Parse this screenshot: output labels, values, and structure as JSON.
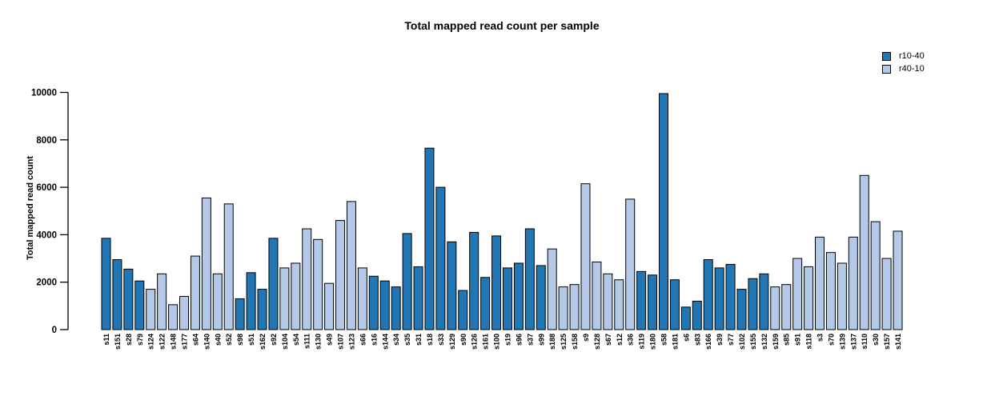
{
  "chart_data": {
    "type": "bar",
    "title": "Total mapped read count per sample",
    "xlabel": "",
    "ylabel": "Total mapped read count",
    "ylim": [
      0,
      10000
    ],
    "yticks": [
      0,
      2000,
      4000,
      6000,
      8000,
      10000
    ],
    "grid": false,
    "legend_position": "top-right",
    "axis_color": "#000000",
    "bar_border_color": "#000000",
    "series": [
      {
        "name": "r10-40",
        "color": "#2176b4"
      },
      {
        "name": "r40-10",
        "color": "#b4c9e8"
      }
    ],
    "categories": [
      "s11",
      "s151",
      "s28",
      "s79",
      "s124",
      "s122",
      "s148",
      "s177",
      "s64",
      "s140",
      "s40",
      "s52",
      "s98",
      "s51",
      "s162",
      "s92",
      "s104",
      "s54",
      "s111",
      "s130",
      "s49",
      "s107",
      "s123",
      "s66",
      "s16",
      "s144",
      "s34",
      "s35",
      "s31",
      "s18",
      "s33",
      "s129",
      "s90",
      "s126",
      "s161",
      "s100",
      "s19",
      "s96",
      "s37",
      "s99",
      "s188",
      "s125",
      "s158",
      "s9",
      "s128",
      "s67",
      "s12",
      "s36",
      "s119",
      "s180",
      "s58",
      "s181",
      "s6",
      "s83",
      "s166",
      "s39",
      "s77",
      "s102",
      "s155",
      "s132",
      "s159",
      "s85",
      "s91",
      "s118",
      "s3",
      "s70",
      "s139",
      "s137",
      "s110",
      "s30",
      "s157",
      "s141"
    ],
    "values": [
      3850,
      2950,
      2550,
      2050,
      1700,
      2350,
      1050,
      1400,
      3100,
      5550,
      2350,
      5300,
      1300,
      2400,
      1700,
      3850,
      2600,
      2800,
      4250,
      3800,
      1950,
      4600,
      5400,
      2600,
      2250,
      2050,
      1800,
      4050,
      2650,
      7650,
      6000,
      3700,
      1650,
      4100,
      2200,
      3950,
      2600,
      2800,
      4250,
      2700,
      3400,
      1800,
      1900,
      6150,
      2850,
      2350,
      2100,
      5500,
      2450,
      2300,
      9950,
      2100,
      950,
      1200,
      2950,
      2600,
      2750,
      1700,
      2150,
      2350,
      1800,
      1900,
      3000,
      2650,
      3900,
      3250,
      2800,
      3900,
      6500,
      4550,
      3000,
      4150
    ],
    "groups": [
      "r10-40",
      "r10-40",
      "r10-40",
      "r10-40",
      "r40-10",
      "r40-10",
      "r40-10",
      "r40-10",
      "r40-10",
      "r40-10",
      "r40-10",
      "r40-10",
      "r10-40",
      "r10-40",
      "r10-40",
      "r10-40",
      "r40-10",
      "r40-10",
      "r40-10",
      "r40-10",
      "r40-10",
      "r40-10",
      "r40-10",
      "r40-10",
      "r10-40",
      "r10-40",
      "r10-40",
      "r10-40",
      "r10-40",
      "r10-40",
      "r10-40",
      "r10-40",
      "r10-40",
      "r10-40",
      "r10-40",
      "r10-40",
      "r10-40",
      "r10-40",
      "r10-40",
      "r10-40",
      "r40-10",
      "r40-10",
      "r40-10",
      "r40-10",
      "r40-10",
      "r40-10",
      "r40-10",
      "r40-10",
      "r10-40",
      "r10-40",
      "r10-40",
      "r10-40",
      "r10-40",
      "r10-40",
      "r10-40",
      "r10-40",
      "r10-40",
      "r10-40",
      "r10-40",
      "r10-40",
      "r40-10",
      "r40-10",
      "r40-10",
      "r40-10",
      "r40-10",
      "r40-10",
      "r40-10",
      "r40-10",
      "r40-10",
      "r40-10",
      "r40-10",
      "r40-10"
    ]
  }
}
